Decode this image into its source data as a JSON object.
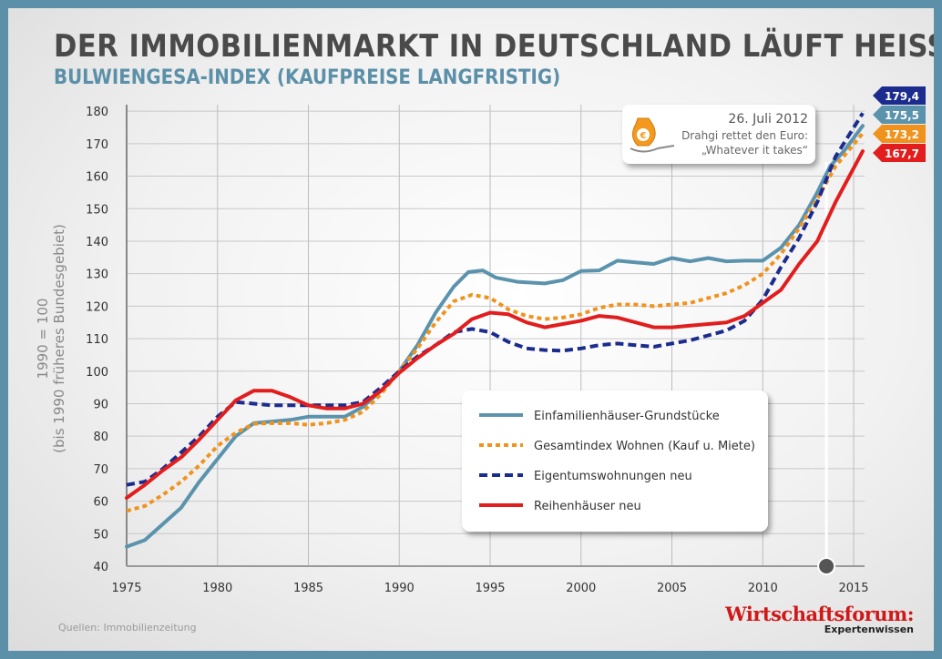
{
  "title": "DER IMMOBILIENMARKT IN DEUTSCHLAND LÄUFT HEISS",
  "subtitle": "BULWIENGESA-INDEX (KAUFPREISE LANGFRISTIG)",
  "source": "Quellen: Immobilienzeitung",
  "brand": {
    "name": "Wirtschaftsforum:",
    "tagline": "Expertenwissen"
  },
  "annotation": {
    "date": "26. Juli 2012",
    "line1": "Drahgi rettet den Euro:",
    "line2": "„Whatever it takes“",
    "x": 2013.5,
    "icon": "money-bag-hand-icon"
  },
  "chart_data": {
    "type": "line",
    "ylabel_line1": "1990 = 100",
    "ylabel_line2": "(bis 1990 früheres Bundesgebiet)",
    "xlim": [
      1975,
      2015.6
    ],
    "ylim": [
      40,
      182
    ],
    "xticks": [
      1975,
      1980,
      1985,
      1990,
      1995,
      2000,
      2005,
      2010,
      2015
    ],
    "yticks": [
      40,
      50,
      60,
      70,
      80,
      90,
      100,
      110,
      120,
      130,
      140,
      150,
      160,
      170,
      180
    ],
    "grid": true,
    "legend_position": "center-right",
    "series": [
      {
        "name": "Einfamilienhäuser-Grundstücke",
        "color": "#5b93ad",
        "style": "solid",
        "end_label": "175,5",
        "points": [
          [
            1975,
            46
          ],
          [
            1976,
            48
          ],
          [
            1977,
            53
          ],
          [
            1978,
            58
          ],
          [
            1979,
            66
          ],
          [
            1980,
            73
          ],
          [
            1981,
            80
          ],
          [
            1982,
            84
          ],
          [
            1983,
            84.5
          ],
          [
            1984,
            85
          ],
          [
            1985,
            86
          ],
          [
            1986,
            86
          ],
          [
            1987,
            86
          ],
          [
            1988,
            89
          ],
          [
            1989,
            94
          ],
          [
            1990,
            100
          ],
          [
            1991,
            108
          ],
          [
            1992,
            118
          ],
          [
            1993,
            126
          ],
          [
            1993.8,
            130.5
          ],
          [
            1994.6,
            131
          ],
          [
            1995.3,
            128.8
          ],
          [
            1996.5,
            127.5
          ],
          [
            1998,
            127
          ],
          [
            1999,
            128
          ],
          [
            2000,
            130.8
          ],
          [
            2001,
            131
          ],
          [
            2002,
            134
          ],
          [
            2003,
            133.5
          ],
          [
            2004,
            133
          ],
          [
            2005,
            134.8
          ],
          [
            2006,
            133.8
          ],
          [
            2007,
            134.8
          ],
          [
            2008,
            133.8
          ],
          [
            2009,
            134
          ],
          [
            2010,
            134
          ],
          [
            2011,
            138
          ],
          [
            2012,
            145
          ],
          [
            2013,
            155
          ],
          [
            2013.7,
            163
          ],
          [
            2014.5,
            168
          ],
          [
            2015.5,
            175.5
          ]
        ]
      },
      {
        "name": "Gesamtindex Wohnen (Kauf u. Miete)",
        "color": "#f0931e",
        "style": "dotted",
        "end_label": "173,2",
        "points": [
          [
            1975,
            57
          ],
          [
            1976,
            58.5
          ],
          [
            1977,
            62
          ],
          [
            1978,
            66
          ],
          [
            1979,
            71
          ],
          [
            1980,
            77
          ],
          [
            1981,
            81
          ],
          [
            1982,
            83.8
          ],
          [
            1983,
            84
          ],
          [
            1984,
            84
          ],
          [
            1985,
            83.5
          ],
          [
            1986,
            84
          ],
          [
            1987,
            85
          ],
          [
            1988,
            87.5
          ],
          [
            1989,
            93
          ],
          [
            1990,
            100
          ],
          [
            1991,
            107
          ],
          [
            1992,
            115
          ],
          [
            1993,
            121.5
          ],
          [
            1994,
            123.5
          ],
          [
            1995,
            122.5
          ],
          [
            1996,
            119
          ],
          [
            1997,
            117
          ],
          [
            1998,
            116
          ],
          [
            1999,
            116.5
          ],
          [
            2000,
            117.5
          ],
          [
            2001,
            119.5
          ],
          [
            2002,
            120.5
          ],
          [
            2003,
            120.5
          ],
          [
            2004,
            120
          ],
          [
            2005,
            120.5
          ],
          [
            2006,
            121
          ],
          [
            2007,
            122.5
          ],
          [
            2008,
            124
          ],
          [
            2009,
            126.5
          ],
          [
            2010,
            130
          ],
          [
            2011,
            136
          ],
          [
            2012,
            144
          ],
          [
            2013,
            153
          ],
          [
            2014,
            163
          ],
          [
            2015.5,
            173.2
          ]
        ]
      },
      {
        "name": "Eigentumswohnungen neu",
        "color": "#1c2c8e",
        "style": "dashed",
        "end_label": "179,4",
        "points": [
          [
            1975,
            65
          ],
          [
            1976,
            66
          ],
          [
            1977,
            70
          ],
          [
            1978,
            75
          ],
          [
            1979,
            80
          ],
          [
            1980,
            86
          ],
          [
            1981,
            90.5
          ],
          [
            1982,
            90
          ],
          [
            1983,
            89.5
          ],
          [
            1984,
            89.5
          ],
          [
            1985,
            89.5
          ],
          [
            1986,
            89.5
          ],
          [
            1987,
            89.5
          ],
          [
            1988,
            90.5
          ],
          [
            1989,
            95
          ],
          [
            1990,
            100
          ],
          [
            1991,
            104.5
          ],
          [
            1992,
            108
          ],
          [
            1993,
            112
          ],
          [
            1994,
            113
          ],
          [
            1995,
            112
          ],
          [
            1996,
            109
          ],
          [
            1997,
            107
          ],
          [
            1998,
            106.5
          ],
          [
            1999,
            106.3
          ],
          [
            2000,
            107
          ],
          [
            2001,
            108
          ],
          [
            2002,
            108.5
          ],
          [
            2003,
            108
          ],
          [
            2004,
            107.5
          ],
          [
            2005,
            108.5
          ],
          [
            2006,
            109.5
          ],
          [
            2007,
            111
          ],
          [
            2008,
            112.5
          ],
          [
            2009,
            115.5
          ],
          [
            2010,
            122
          ],
          [
            2011,
            132
          ],
          [
            2012,
            141
          ],
          [
            2013,
            152
          ],
          [
            2014,
            166
          ],
          [
            2015.5,
            179.4
          ]
        ]
      },
      {
        "name": "Reihenhäuser neu",
        "color": "#e11d1d",
        "style": "solid",
        "end_label": "167,7",
        "points": [
          [
            1975,
            61
          ],
          [
            1976,
            65
          ],
          [
            1977,
            69.5
          ],
          [
            1978,
            73.5
          ],
          [
            1979,
            79
          ],
          [
            1980,
            85
          ],
          [
            1981,
            91
          ],
          [
            1982,
            94
          ],
          [
            1983,
            94
          ],
          [
            1984,
            92
          ],
          [
            1985,
            89.5
          ],
          [
            1986,
            88.5
          ],
          [
            1987,
            88.5
          ],
          [
            1988,
            90
          ],
          [
            1989,
            94
          ],
          [
            1990,
            99.5
          ],
          [
            1991,
            104
          ],
          [
            1992,
            108
          ],
          [
            1993,
            111.5
          ],
          [
            1994,
            116
          ],
          [
            1995,
            118
          ],
          [
            1996,
            117.5
          ],
          [
            1997,
            115
          ],
          [
            1998,
            113.5
          ],
          [
            1999,
            114.5
          ],
          [
            2000,
            115.5
          ],
          [
            2001,
            117
          ],
          [
            2002,
            116.5
          ],
          [
            2003,
            115
          ],
          [
            2004,
            113.5
          ],
          [
            2005,
            113.5
          ],
          [
            2006,
            114
          ],
          [
            2007,
            114.5
          ],
          [
            2008,
            115
          ],
          [
            2009,
            117
          ],
          [
            2010,
            121
          ],
          [
            2011,
            125
          ],
          [
            2012,
            133
          ],
          [
            2013,
            140
          ],
          [
            2014,
            152
          ],
          [
            2015.5,
            167.7
          ]
        ]
      }
    ]
  }
}
